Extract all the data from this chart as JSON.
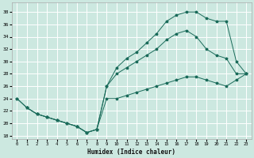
{
  "title": "",
  "xlabel": "Humidex (Indice chaleur)",
  "background_color": "#cce8e0",
  "grid_color": "#ffffff",
  "line_color": "#1a6b5a",
  "xlim": [
    -0.5,
    23.5
  ],
  "ylim": [
    17.5,
    39.5
  ],
  "xticks": [
    0,
    1,
    2,
    3,
    4,
    5,
    6,
    7,
    8,
    9,
    10,
    11,
    12,
    13,
    14,
    15,
    16,
    17,
    18,
    19,
    20,
    21,
    22,
    23
  ],
  "yticks": [
    18,
    20,
    22,
    24,
    26,
    28,
    30,
    32,
    34,
    36,
    38
  ],
  "curve_top_x": [
    0,
    1,
    2,
    3,
    4,
    5,
    6,
    7,
    8,
    9,
    10,
    11,
    12,
    13,
    14,
    15,
    16,
    17,
    18,
    19,
    20,
    21,
    22,
    23
  ],
  "curve_top_y": [
    24,
    22.5,
    21.5,
    21,
    20.5,
    20,
    19.5,
    18.5,
    19,
    26,
    29,
    30.5,
    31.5,
    33,
    34.5,
    36.5,
    37.5,
    38,
    38,
    37,
    36.5,
    36.5,
    30,
    28
  ],
  "curve_mid_x": [
    0,
    1,
    2,
    3,
    4,
    5,
    6,
    7,
    8,
    9,
    10,
    11,
    12,
    13,
    14,
    15,
    16,
    17,
    18,
    19,
    20,
    21,
    22,
    23
  ],
  "curve_mid_y": [
    24,
    22.5,
    21.5,
    21,
    20.5,
    20,
    19.5,
    18.5,
    19,
    26,
    28,
    29,
    30,
    31,
    32,
    33.5,
    34.5,
    35,
    34,
    32,
    31,
    30.5,
    28,
    28
  ],
  "curve_bot_x": [
    1,
    2,
    3,
    4,
    5,
    6,
    7,
    8,
    9,
    10,
    11,
    12,
    13,
    14,
    15,
    16,
    17,
    18,
    19,
    20,
    21,
    22,
    23
  ],
  "curve_bot_y": [
    22.5,
    21.5,
    21,
    20.5,
    20,
    19.5,
    18.5,
    19,
    24,
    24,
    24.5,
    25,
    25.5,
    26,
    26.5,
    27,
    27.5,
    27.5,
    27,
    26.5,
    26,
    27,
    28
  ]
}
